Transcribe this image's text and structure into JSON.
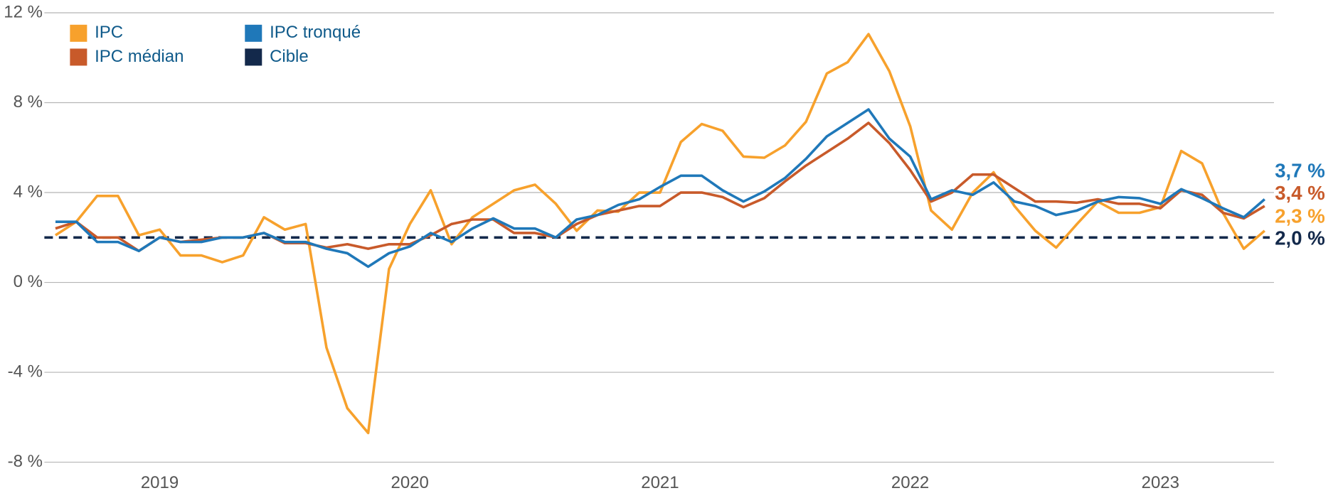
{
  "chart_data": {
    "type": "line",
    "categories": [
      null,
      null,
      null,
      null,
      null,
      "2019",
      null,
      null,
      null,
      null,
      null,
      null,
      null,
      null,
      null,
      null,
      null,
      "2020",
      null,
      null,
      null,
      null,
      null,
      null,
      null,
      null,
      null,
      null,
      null,
      "2021",
      null,
      null,
      null,
      null,
      null,
      null,
      null,
      null,
      null,
      null,
      null,
      "2022",
      null,
      null,
      null,
      null,
      null,
      null,
      null,
      null,
      null,
      null,
      null,
      "2023",
      null,
      null,
      null,
      null,
      null
    ],
    "series": [
      {
        "name": "IPC",
        "color": "#f7a12c",
        "end_label": "2,3 %",
        "values": [
          2.1,
          2.7,
          3.85,
          3.85,
          2.1,
          2.35,
          1.2,
          1.2,
          0.9,
          1.2,
          2.9,
          2.35,
          2.6,
          -2.9,
          -5.6,
          -6.7,
          0.6,
          2.6,
          4.1,
          1.7,
          2.9,
          3.5,
          4.1,
          4.35,
          3.5,
          2.3,
          3.2,
          3.15,
          4.0,
          4.0,
          6.25,
          7.05,
          6.75,
          5.6,
          5.55,
          6.1,
          7.15,
          9.3,
          9.8,
          11.05,
          9.4,
          6.95,
          3.2,
          2.35,
          4.0,
          4.9,
          3.4,
          2.3,
          1.55,
          2.6,
          3.6,
          3.1,
          3.1,
          3.35,
          5.85,
          5.3,
          3.1,
          1.5,
          2.3
        ]
      },
      {
        "name": "IPC médian",
        "color": "#c85a2a",
        "end_label": "3,4 %",
        "values": [
          2.4,
          2.7,
          2.0,
          2.0,
          1.4,
          2.0,
          1.8,
          1.9,
          2.0,
          2.0,
          2.2,
          1.75,
          1.75,
          1.55,
          1.7,
          1.5,
          1.7,
          1.7,
          2.1,
          2.6,
          2.8,
          2.8,
          2.2,
          2.2,
          2.0,
          2.6,
          3.0,
          3.2,
          3.4,
          3.4,
          4.0,
          4.0,
          3.8,
          3.35,
          3.75,
          4.5,
          5.2,
          5.8,
          6.4,
          7.1,
          6.2,
          5.0,
          3.6,
          4.0,
          4.8,
          4.8,
          4.2,
          3.6,
          3.6,
          3.55,
          3.7,
          3.5,
          3.5,
          3.3,
          4.1,
          3.9,
          3.1,
          2.85,
          3.4
        ]
      },
      {
        "name": "IPC tronqué",
        "color": "#1f78b9",
        "end_label": "3,7 %",
        "values": [
          2.7,
          2.7,
          1.8,
          1.8,
          1.4,
          2.0,
          1.8,
          1.8,
          2.0,
          2.0,
          2.2,
          1.8,
          1.8,
          1.5,
          1.3,
          0.7,
          1.3,
          1.6,
          2.2,
          1.8,
          2.4,
          2.85,
          2.4,
          2.4,
          2.0,
          2.8,
          3.0,
          3.45,
          3.7,
          4.25,
          4.75,
          4.75,
          4.1,
          3.6,
          4.05,
          4.65,
          5.5,
          6.5,
          7.1,
          7.7,
          6.4,
          5.6,
          3.7,
          4.1,
          3.9,
          4.45,
          3.6,
          3.4,
          3.0,
          3.2,
          3.6,
          3.8,
          3.75,
          3.5,
          4.15,
          3.75,
          3.3,
          2.9,
          3.7
        ]
      }
    ],
    "reference_line": {
      "name": "Cible",
      "value": 2,
      "color": "#13294b",
      "end_label": "2,0 %"
    },
    "ylim": [
      -8,
      12
    ],
    "yticks": [
      {
        "value": -8,
        "label": "-8 %"
      },
      {
        "value": -4,
        "label": "-4 %"
      },
      {
        "value": 0,
        "label": "0 %"
      },
      {
        "value": 4,
        "label": "4 %"
      },
      {
        "value": 8,
        "label": "8 %"
      },
      {
        "value": 12,
        "label": "12 %"
      }
    ],
    "grid": true,
    "legend": "top-left"
  }
}
